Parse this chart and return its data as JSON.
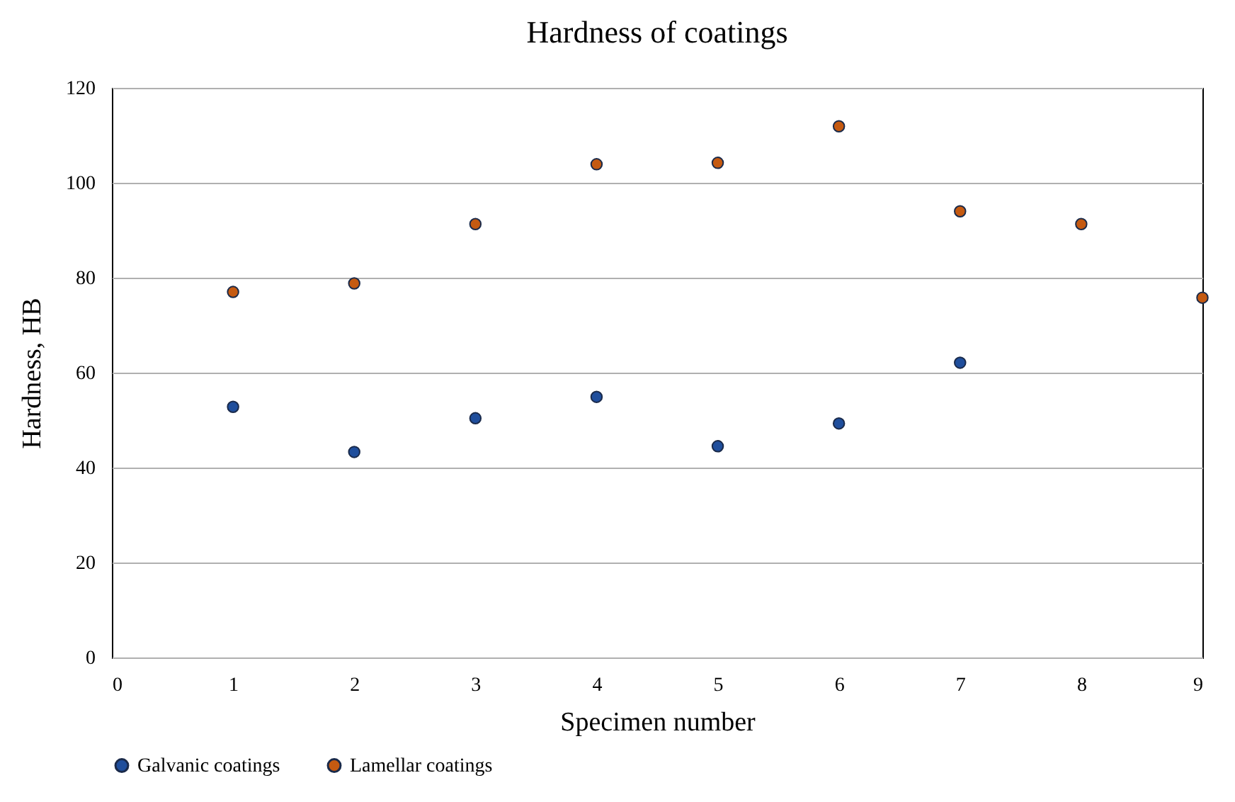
{
  "chart_data": {
    "type": "scatter",
    "title": "Hardness of coatings",
    "xlabel": "Specimen number",
    "ylabel": "Hardness, HB",
    "xlim": [
      0,
      9
    ],
    "xticks": [
      0,
      1,
      2,
      3,
      4,
      5,
      6,
      7,
      8,
      9
    ],
    "ylim": [
      0,
      120
    ],
    "yticks": [
      0,
      20,
      40,
      60,
      80,
      100,
      120
    ],
    "grid": "y",
    "legend": "bottom",
    "marker": "circle",
    "series": [
      {
        "name": "Galvanic coatings",
        "color": "#1f4e9c",
        "x": [
          1,
          2,
          3,
          4,
          5,
          6,
          7
        ],
        "values": [
          52.8,
          43.3,
          50.4,
          54.9,
          44.5,
          49.3,
          62.1
        ]
      },
      {
        "name": "Lamellar coatings",
        "color": "#c55a11",
        "x": [
          1,
          2,
          3,
          4,
          5,
          6,
          7,
          8,
          9
        ],
        "values": [
          77.0,
          78.8,
          91.3,
          103.9,
          104.2,
          111.9,
          94.0,
          91.3,
          75.8
        ]
      }
    ]
  }
}
